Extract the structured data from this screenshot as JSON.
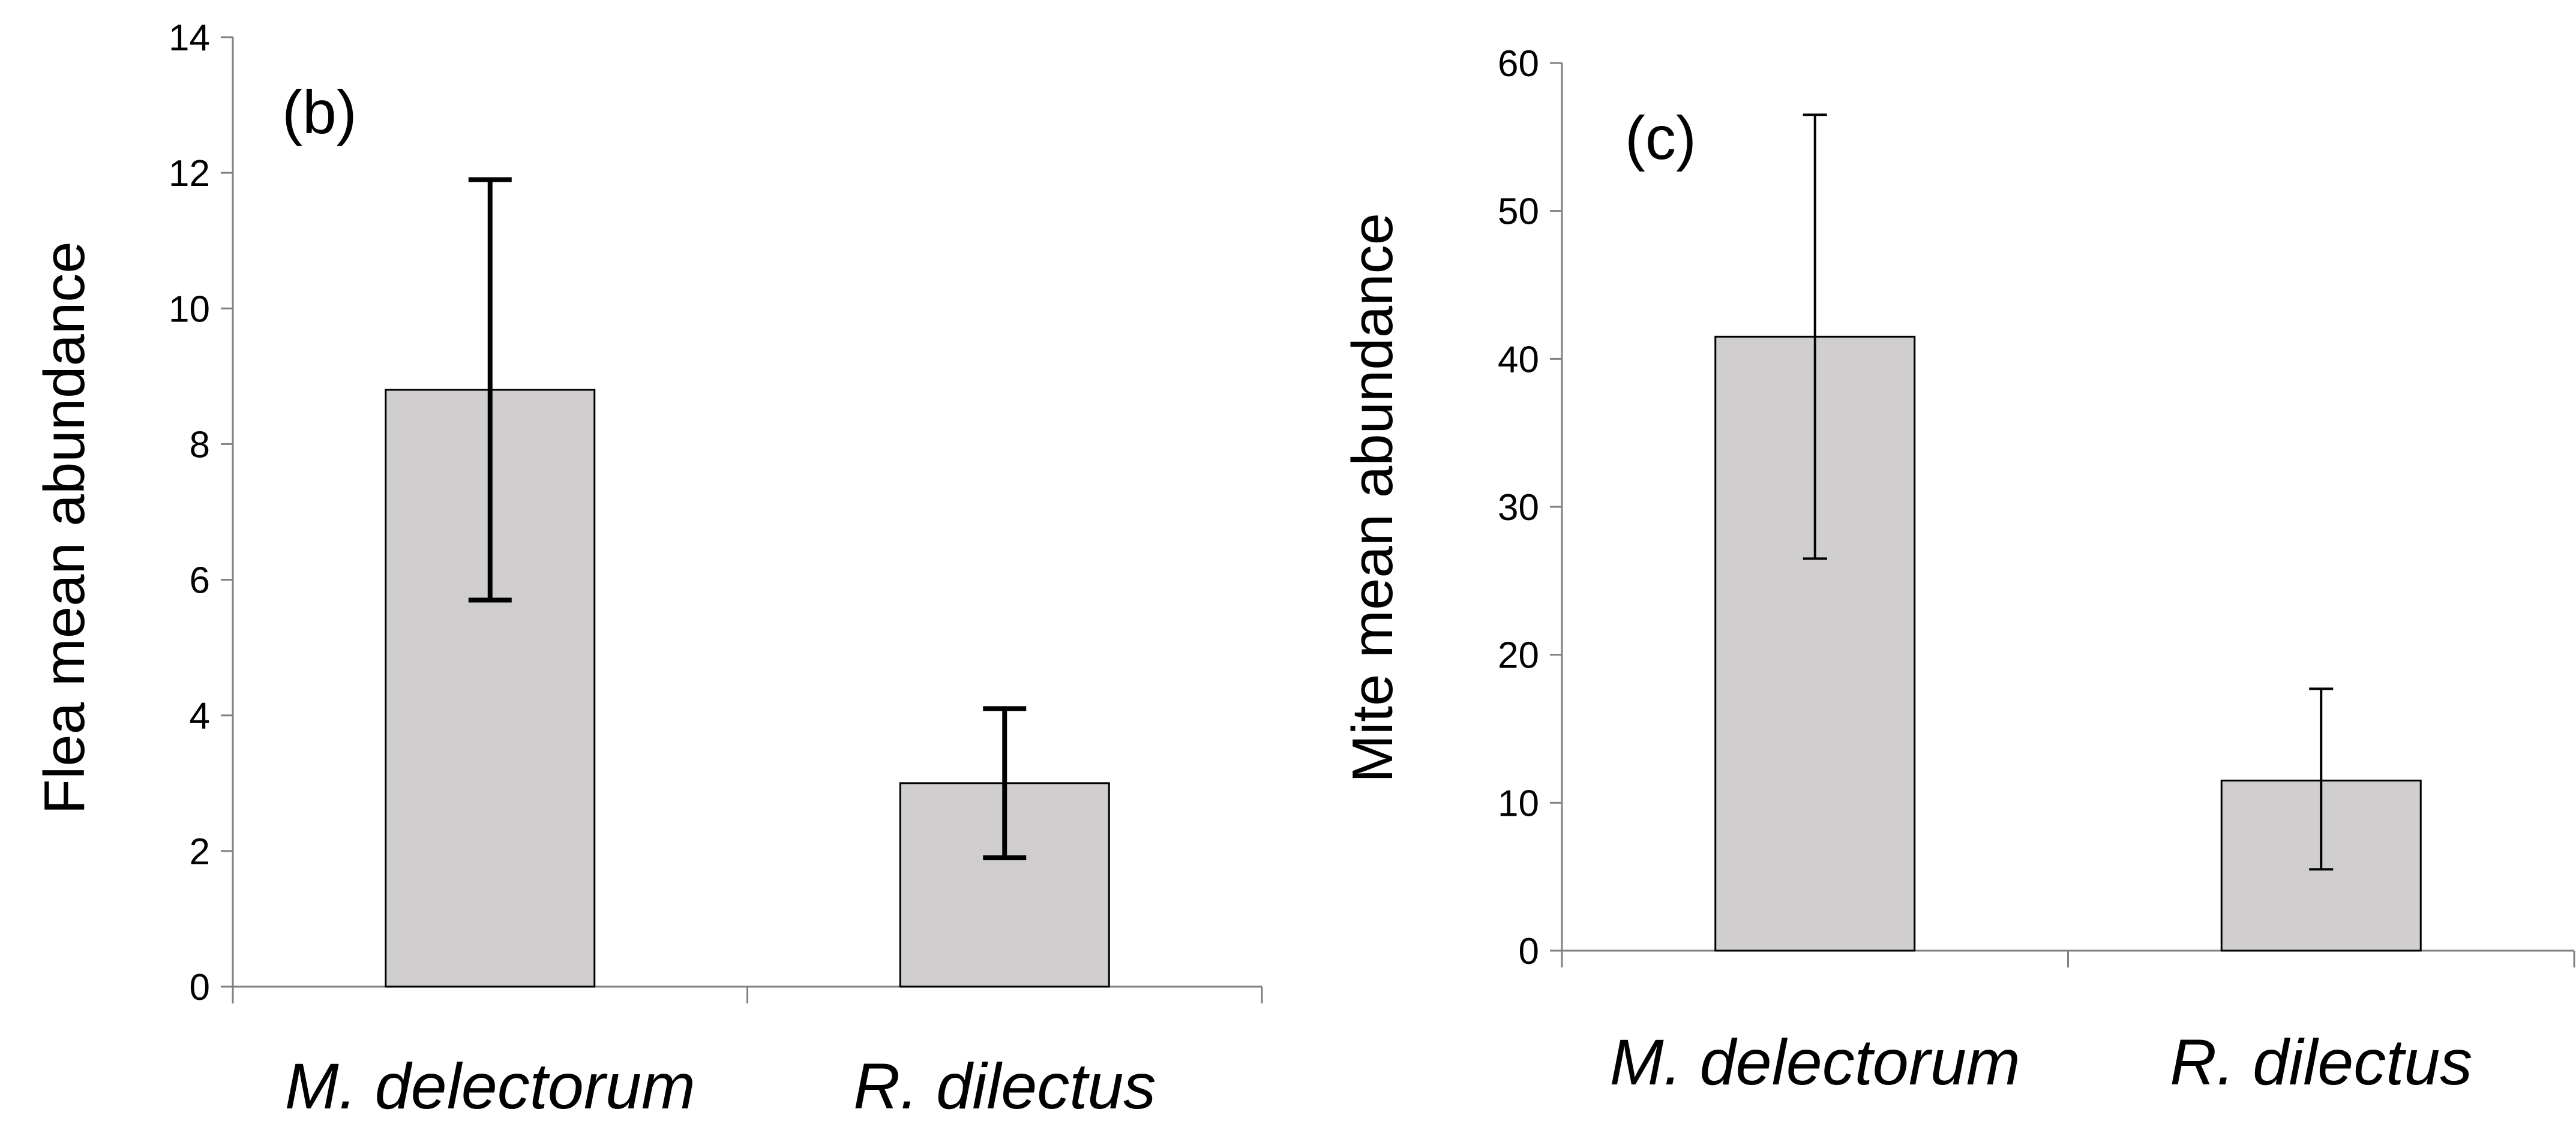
{
  "chart_data": [
    {
      "type": "bar",
      "panel_label": "(b)",
      "ylabel": "Flea mean abundance",
      "categories": [
        "M. delectorum",
        "R. dilectus"
      ],
      "values": [
        8.8,
        3.0
      ],
      "error_bars": [
        [
          5.7,
          11.9
        ],
        [
          1.9,
          4.1
        ]
      ],
      "ylim": [
        0,
        14
      ],
      "yticks": [
        "0",
        "2",
        "4",
        "6",
        "8",
        "10",
        "12",
        "14"
      ],
      "grid": false,
      "legend": "none"
    },
    {
      "type": "bar",
      "panel_label": "(c)",
      "ylabel": "Mite mean abundance",
      "categories": [
        "M. delectorum",
        "R. dilectus"
      ],
      "values": [
        41.5,
        11.5
      ],
      "error_bars": [
        [
          26.5,
          56.5
        ],
        [
          5.5,
          17.7
        ]
      ],
      "ylim": [
        0,
        60
      ],
      "yticks": [
        "0",
        "10",
        "20",
        "30",
        "40",
        "50",
        "60"
      ],
      "grid": false,
      "legend": "none"
    }
  ]
}
